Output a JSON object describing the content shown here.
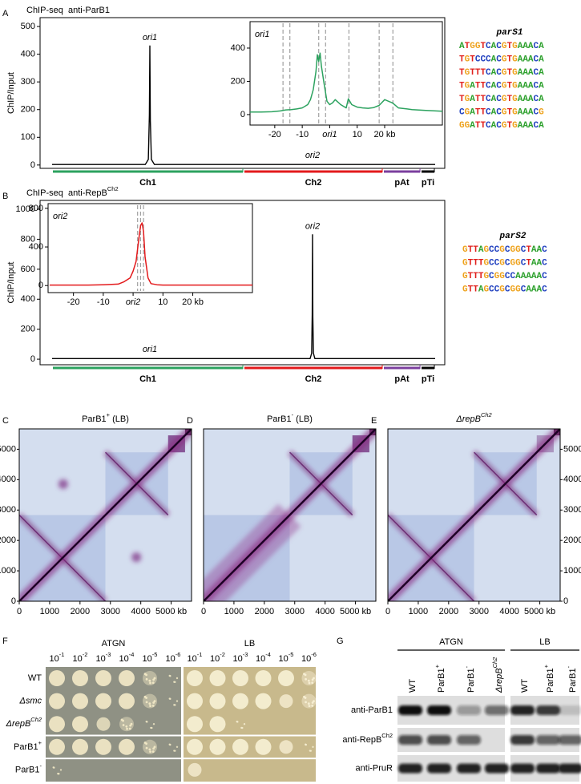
{
  "genome": {
    "xlim": [
      0,
      5670
    ],
    "chromosomes": [
      {
        "name": "Ch1",
        "color": "#2ca25f",
        "start": 0,
        "end": 2835
      },
      {
        "name": "Ch2",
        "color": "#e31a1c",
        "start": 2835,
        "end": 4899
      },
      {
        "name": "pAt",
        "color": "#7b3f9e",
        "start": 4899,
        "end": 5457
      },
      {
        "name": "pTi",
        "color": "#000000",
        "start": 5457,
        "end": 5670
      }
    ]
  },
  "panel_a": {
    "letter": "A",
    "title": {
      "name": "ChIP-seq  anti-ParB1"
    },
    "ylabel": "ChIP/Input",
    "ylim": [
      -12,
      532
    ],
    "yticks": [
      0,
      100,
      200,
      300,
      400,
      500
    ],
    "color": "#000000",
    "x": [
      0,
      1380,
      1425,
      1440,
      1447,
      1454,
      1470,
      1515,
      5670
    ],
    "values": [
      2,
      2,
      20,
      180,
      430,
      160,
      20,
      2,
      2
    ],
    "peak_label": "ori1",
    "other_label": "ori2",
    "inset": {
      "label": "ori1",
      "color": "#2ca25f",
      "xlim": [
        -29,
        41
      ],
      "ylim": [
        -63,
        559
      ],
      "yticks": [
        0,
        200,
        400
      ],
      "xticks": [
        -20,
        -10,
        {
          "value": 0,
          "label": "ori1"
        },
        10,
        {
          "value": 20,
          "label": "20 kb"
        }
      ],
      "pars_positions": [
        -17,
        -14.5,
        -4,
        -1.5,
        7,
        18,
        23
      ],
      "x": [
        -29,
        -25,
        -21,
        -18,
        -16,
        -14,
        -12,
        -10,
        -8,
        -7,
        -6,
        -5,
        -4.5,
        -4,
        -3.5,
        -3,
        -2,
        -1,
        0,
        1,
        2,
        4,
        6,
        6.8,
        8,
        10,
        12,
        14,
        16,
        18,
        20,
        22.9,
        25,
        30,
        35,
        41
      ],
      "values": [
        15,
        15,
        17,
        22,
        28,
        30,
        34,
        40,
        60,
        90,
        150,
        260,
        360,
        320,
        370,
        290,
        180,
        80,
        60,
        70,
        90,
        60,
        40,
        95,
        60,
        45,
        40,
        38,
        42,
        55,
        90,
        70,
        40,
        30,
        25,
        20
      ]
    },
    "motif": {
      "title": "parS1",
      "sequences": [
        "ATGGTCACGTGAAACA",
        "TGTCCCACGTGAAACA",
        "TGTTTCACGTGAAACA",
        "TGATTCACGTGAAACA",
        "TGATTCACGTGAAACA",
        "CGATTCACGTGAAACG",
        "GGATTCACGTGAAACA"
      ]
    }
  },
  "panel_b": {
    "letter": "B",
    "title": {
      "name": "ChIP-seq  anti-RepB",
      "sup": "Ch2"
    },
    "ylabel": "ChIP/Input",
    "ylim": [
      -37,
      1059
    ],
    "yticks": [
      0,
      200,
      400,
      600,
      800,
      1000
    ],
    "color": "#000000",
    "x": [
      0,
      3820,
      3842,
      3850,
      3855,
      3860,
      3868,
      3890,
      5670
    ],
    "values": [
      4,
      4,
      40,
      300,
      830,
      280,
      40,
      4,
      4
    ],
    "peak_label": "ori2",
    "other_label": "ori1",
    "inset": {
      "label": "ori2",
      "color": "#e31a1c",
      "xlim": [
        -28.5,
        40
      ],
      "ylim": [
        -73,
        849
      ],
      "yticks": [
        0,
        400,
        800
      ],
      "xticks": [
        -20,
        -10,
        {
          "value": 0,
          "label": "ori2"
        },
        10,
        {
          "value": 20,
          "label": "20 kb"
        }
      ],
      "pars_positions": [
        1.5,
        2.5,
        3.5
      ],
      "x": [
        -28,
        -20,
        -15,
        -10,
        -5,
        -3,
        -1,
        0,
        1,
        1.5,
        2,
        2.5,
        3,
        3.5,
        4,
        5,
        6,
        8,
        10,
        15,
        20,
        28,
        40
      ],
      "values": [
        5,
        5,
        5,
        8,
        15,
        40,
        80,
        150,
        250,
        380,
        500,
        620,
        650,
        560,
        300,
        80,
        20,
        8,
        5,
        5,
        5,
        5,
        5
      ]
    },
    "motif": {
      "title": "parS2",
      "sequences": [
        "GTTAGCCGCGGCTAAC",
        "GTTTGCCGCGGCTAAC",
        "GTTTGCGGCCAAAAAC",
        "GTTAGCCGCGGCAAAC"
      ]
    }
  },
  "hic": {
    "xlim": [
      0,
      5670
    ],
    "xticks": [
      0,
      1000,
      2000,
      3000,
      4000,
      {
        "value": 5000,
        "label": "5000 kb"
      }
    ],
    "yticks": [
      0,
      1000,
      2000,
      3000,
      4000,
      5000
    ],
    "maps": [
      {
        "letter": "C",
        "name": "ParB1",
        "sup": "+",
        "suffix": " (LB)"
      },
      {
        "letter": "D",
        "name": "ParB1",
        "sup": "-",
        "suffix": " (LB)"
      },
      {
        "letter": "E",
        "name": "ΔrepB",
        "sup": "Ch2"
      }
    ]
  },
  "panel_f": {
    "letter": "F",
    "media": [
      "ATGN",
      "LB"
    ],
    "dilutions": [
      {
        "name": "10",
        "sup": "-1"
      },
      {
        "name": "10",
        "sup": "-2"
      },
      {
        "name": "10",
        "sup": "-3"
      },
      {
        "name": "10",
        "sup": "-4"
      },
      {
        "name": "10",
        "sup": "-5"
      },
      {
        "name": "10",
        "sup": "-6"
      }
    ],
    "strains": [
      {
        "name": "WT"
      },
      {
        "name": "Δsmc"
      },
      {
        "name": "ΔrepB",
        "sup": "Ch2"
      },
      {
        "name": "ParB1",
        "sup": "+"
      },
      {
        "name": "ParB1",
        "sup": "-"
      }
    ]
  },
  "panel_g": {
    "letter": "G",
    "groups": [
      "ATGN",
      "LB"
    ],
    "lanes": [
      {
        "name": "WT"
      },
      {
        "name": "ParB1",
        "sup": "+"
      },
      {
        "name": "ParB1",
        "sup": "-"
      },
      {
        "name": "ΔrepB",
        "sup": "Ch2"
      },
      {
        "name": "WT"
      },
      {
        "name": "ParB1",
        "sup": "+"
      },
      {
        "name": "ParB1",
        "sup": "-"
      }
    ],
    "antibodies": [
      {
        "name": "anti-ParB1"
      },
      {
        "name": "anti-RepB",
        "sup": "Ch2"
      },
      {
        "name": "anti-PruR"
      }
    ]
  }
}
